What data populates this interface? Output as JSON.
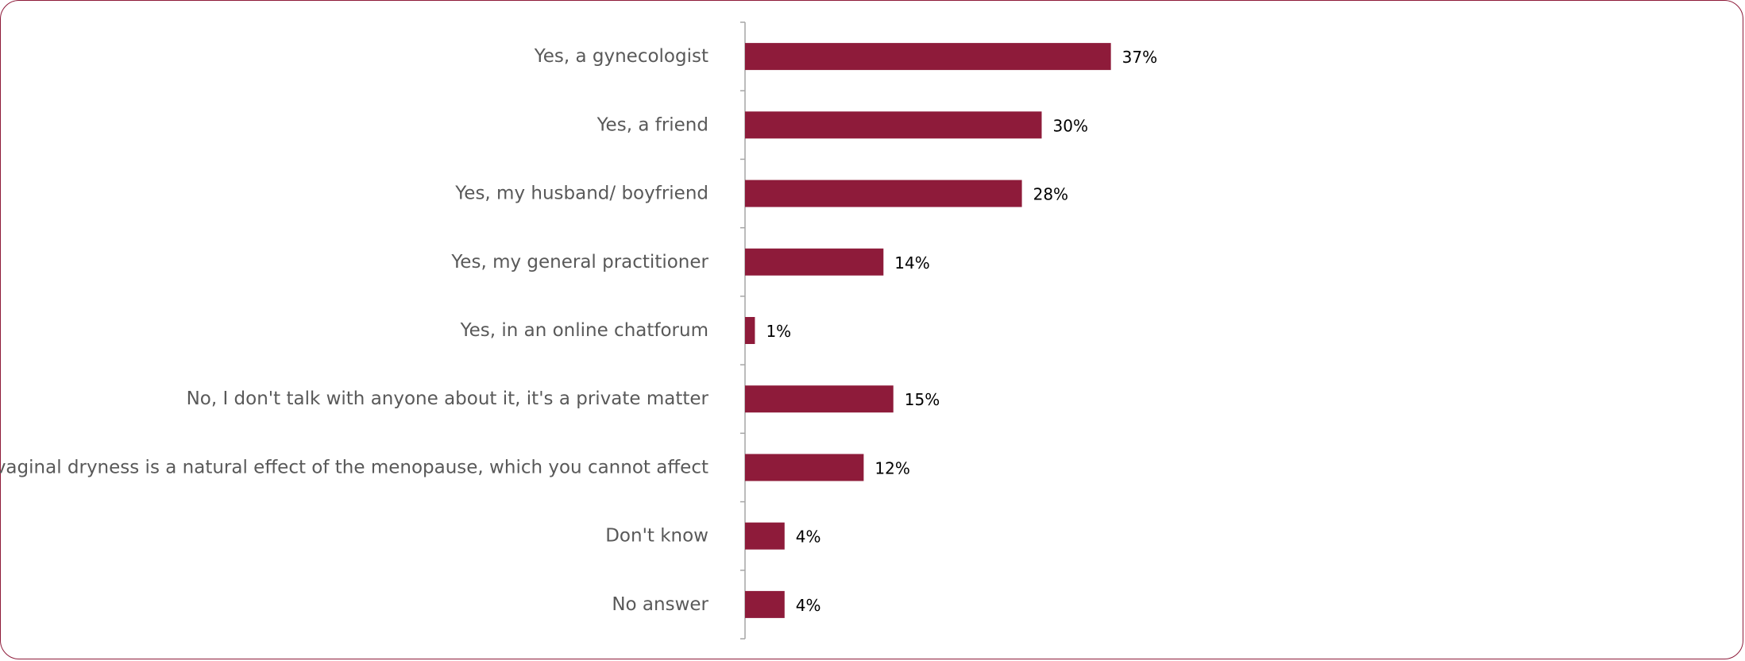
{
  "chart_data": {
    "type": "bar",
    "orientation": "horizontal",
    "categories": [
      "Yes, a gynecologist",
      "Yes, a friend",
      "Yes, my husband/ boyfriend",
      "Yes, my general practitioner",
      "Yes, in an online chatforum",
      "No, I don't talk with anyone about it, it's a private matter",
      "No, vaginal dryness is a natural effect of the menopause, which you cannot affect",
      "Don't know",
      "No answer"
    ],
    "values": [
      37,
      30,
      28,
      14,
      1,
      15,
      12,
      4,
      4
    ],
    "value_labels": [
      "37%",
      "30%",
      "28%",
      "14%",
      "1%",
      "15%",
      "12%",
      "4%",
      "4%"
    ],
    "unit": "%",
    "xlim": [
      0,
      100
    ],
    "grid": false,
    "legend": "none",
    "colors": {
      "bar": "#8e1b3a",
      "axis": "#a6a6a6",
      "category_text": "#595959",
      "value_text": "#000000",
      "frame": "#8e1b3a"
    }
  }
}
